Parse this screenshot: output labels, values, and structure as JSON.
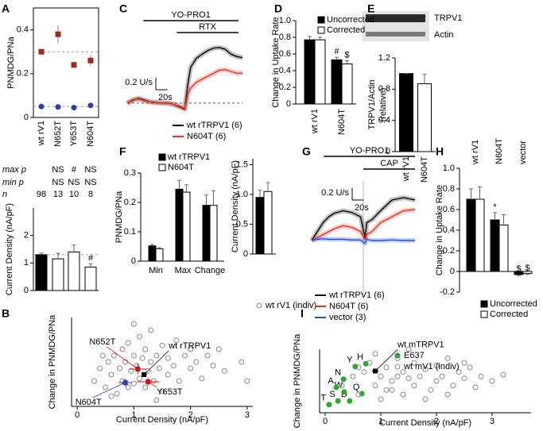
{
  "chart_data": [
    {
      "type": "dot",
      "panel": "A",
      "ylabel": "PNMDG/PNa",
      "categories": [
        "wt rV1",
        "N652T",
        "Y653T",
        "N604T"
      ],
      "ylim": [
        0,
        0.5
      ],
      "yticks": [
        0,
        0.2,
        0.4
      ],
      "series": [
        {
          "color": "#a0281e",
          "marker": "square",
          "values": [
            0.3,
            0.38,
            0.24,
            0.26
          ],
          "errors": [
            0.01,
            0.04,
            0.015,
            0.025
          ]
        },
        {
          "color": "#2d3bb0",
          "marker": "circle",
          "values": [
            0.05,
            0.048,
            0.045,
            0.055
          ],
          "errors": [
            0.003,
            0.005,
            0.005,
            0.006
          ]
        }
      ]
    },
    {
      "type": "table",
      "rows": [
        {
          "label": "max p",
          "color": "#d01010",
          "cells": [
            null,
            "NS",
            "#",
            "NS"
          ]
        },
        {
          "label": "min p",
          "color": "#2d3bb0",
          "cells": [
            null,
            "NS",
            "NS",
            "NS"
          ]
        },
        {
          "label": "n",
          "color": "#000000",
          "cells": [
            98,
            13,
            10,
            8
          ]
        }
      ]
    },
    {
      "type": "bar",
      "ylabel": "Current Density (nA/pF)",
      "ylim": [
        0,
        3
      ],
      "yticks": [
        0,
        1,
        2
      ],
      "values": [
        1.3,
        1.15,
        1.4,
        0.85
      ],
      "errors": [
        0.06,
        0.2,
        0.25,
        0.12
      ],
      "colors": [
        "#000000",
        "#ffffff",
        "#ffffff",
        "#ffffff"
      ],
      "annotations": [
        null,
        null,
        null,
        "#"
      ]
    },
    {
      "type": "scatter",
      "panel": "B",
      "xlabel": "Current Density (nA/pF)",
      "ylabel": "Change in PNMDG/PNa",
      "xlim": [
        -0.1,
        3.1
      ],
      "ylim": [
        -0.1,
        0.6
      ],
      "xticks": [
        0,
        1,
        2,
        3
      ],
      "series": [
        {
          "name": "wt rV1 (indiv)",
          "color": "#888888",
          "marker": "open",
          "x": [
            0.3,
            0.4,
            0.5,
            0.55,
            0.6,
            0.65,
            0.7,
            0.75,
            0.8,
            0.8,
            0.85,
            0.9,
            0.9,
            0.95,
            1.0,
            1.0,
            1.05,
            1.1,
            1.1,
            1.15,
            1.2,
            1.2,
            1.25,
            1.3,
            1.3,
            1.35,
            1.4,
            1.45,
            1.5,
            1.5,
            1.6,
            1.6,
            1.7,
            1.75,
            1.8,
            1.9,
            2.0,
            2.0,
            2.1,
            2.2,
            2.3,
            2.4,
            2.5,
            2.6,
            2.9,
            3.0,
            0.45,
            0.6,
            1.0,
            1.4
          ],
          "values": [
            0.1,
            0.2,
            0.05,
            0.25,
            0.15,
            0.3,
            0.0,
            0.2,
            0.35,
            0.1,
            0.25,
            0.05,
            0.4,
            0.18,
            0.3,
            0.08,
            0.22,
            0.45,
            0.12,
            0.28,
            0.05,
            0.35,
            0.18,
            0.25,
            0.5,
            0.1,
            0.3,
            0.2,
            0.38,
            0.02,
            0.15,
            0.28,
            0.22,
            0.42,
            0.1,
            0.3,
            0.2,
            0.35,
            0.25,
            0.12,
            0.3,
            0.22,
            0.35,
            0.18,
            0.25,
            0.1,
            0.3,
            -0.02,
            0.55,
            -0.05
          ]
        }
      ],
      "means": [
        {
          "label": "wt rTRPV1",
          "color": "#000000",
          "x": 1.18,
          "y": 0.15,
          "xerr": 0.05,
          "yerr": 0.015
        },
        {
          "label": "N652T",
          "color": "#d01010",
          "x": 1.07,
          "y": 0.194,
          "xerr": 0.15,
          "yerr": 0.04
        },
        {
          "label": "Y653T",
          "color": "#d01010",
          "x": 1.25,
          "y": 0.094,
          "xerr": 0.2,
          "yerr": 0.03
        },
        {
          "label": "N604T",
          "color": "#2d3bb0",
          "x": 0.85,
          "y": 0.0875,
          "xerr": 0.12,
          "yerr": 0.03
        }
      ]
    },
    {
      "type": "line",
      "panel": "C",
      "xlim": [
        0,
        200
      ],
      "ylim": [
        -0.2,
        1.3
      ],
      "x": [
        0,
        10,
        20,
        30,
        40,
        50,
        60,
        70,
        80,
        90,
        95,
        100,
        105,
        110,
        120,
        130,
        140,
        150,
        160,
        170,
        180,
        190,
        200
      ],
      "series": [
        {
          "name": "wt rTRPV1 (6)",
          "color": "#000000",
          "values": [
            0,
            0.05,
            0.08,
            0.05,
            0.02,
            0.01,
            0,
            0,
            -0.02,
            -0.06,
            -0.08,
            -0.1,
            0.3,
            0.6,
            0.75,
            0.82,
            0.88,
            0.92,
            0.93,
            0.9,
            0.82,
            0.78,
            0.76
          ]
        },
        {
          "name": "N604T (6)",
          "color": "#e8321e",
          "values": [
            0,
            0.06,
            0.07,
            0.04,
            0.02,
            0.01,
            0,
            0,
            -0.02,
            -0.05,
            -0.07,
            -0.09,
            0.15,
            0.25,
            0.35,
            0.4,
            0.45,
            0.5,
            0.55,
            0.56,
            0.53,
            0.5,
            0.5
          ]
        }
      ],
      "bars": [
        {
          "label": "YO-PRO1",
          "start": 28,
          "end": 193
        },
        {
          "label": "RTX",
          "start": 86,
          "end": 193
        }
      ],
      "scale_bar": {
        "y_label": "0.2 U/s",
        "y_value": 0.2,
        "x_label": "20s",
        "x_value": 20
      }
    },
    {
      "type": "bar",
      "panel": "D",
      "ylabel": "Change in Uptake Rate",
      "categories": [
        "wt rV1",
        "N604T"
      ],
      "ylim": [
        0,
        1
      ],
      "yticks": [
        0,
        0.2,
        0.4,
        0.6,
        0.8,
        {
          "value": 1,
          "label": "1.0"
        }
      ],
      "series": [
        {
          "name": "Uncorrected",
          "color": "#000000",
          "values": [
            0.77,
            0.53
          ],
          "errors": [
            0.04,
            0.03
          ],
          "annotations": [
            null,
            "#"
          ]
        },
        {
          "name": "Corrected",
          "color": "#ffffff",
          "values": [
            0.77,
            0.48
          ],
          "errors": [
            0.03,
            0.04
          ],
          "annotations": [
            null,
            "$"
          ]
        }
      ]
    },
    {
      "type": "bar",
      "panel": "E",
      "ylabel": [
        "TRPV1/Actin",
        "(relative)"
      ],
      "categories": [
        "wt rV1",
        "N604T"
      ],
      "ylim": [
        0,
        1.2
      ],
      "yticks": [
        0,
        0.4,
        0.8,
        1.2
      ],
      "values": [
        1.0,
        0.87
      ],
      "errors": [
        0,
        0.12
      ],
      "colors": [
        "#000000",
        "#ffffff"
      ],
      "blot_labels": [
        "TRPV1",
        "Actin"
      ]
    },
    {
      "type": "bar",
      "panel": "F",
      "ylabel": "PNMDG/PNa",
      "categories": [
        "Min",
        "Max",
        "Change"
      ],
      "ylim": [
        0,
        0.3
      ],
      "yticks": [
        0,
        0.1,
        0.2,
        0.3
      ],
      "series": [
        {
          "name": "wt rTRPV1",
          "color": "#000000",
          "values": [
            0.052,
            0.245,
            0.19
          ],
          "errors": [
            0.005,
            0.03,
            0.035
          ]
        },
        {
          "name": "N604T",
          "color": "#ffffff",
          "values": [
            0.042,
            0.235,
            0.19
          ],
          "errors": [
            0.004,
            0.025,
            0.05
          ]
        }
      ]
    },
    {
      "type": "bar",
      "ylabel": "Current Density (nA/pF)",
      "ylim": [
        0,
        1.6
      ],
      "yticks": [
        0,
        0.5,
        {
          "value": 1,
          "label": "1.0"
        },
        1.5
      ],
      "values": [
        0.95,
        1.05
      ],
      "errors": [
        0.12,
        0.15
      ],
      "colors": [
        "#000000",
        "#ffffff"
      ]
    },
    {
      "type": "line",
      "panel": "G",
      "xlim": [
        0,
        180
      ],
      "ylim": [
        -0.2,
        1.0
      ],
      "x": [
        0,
        10,
        20,
        30,
        40,
        55,
        70,
        85,
        93,
        96,
        105,
        120,
        140,
        160,
        180
      ],
      "series": [
        {
          "name": "wt rTRPV1 (6)",
          "color": "#000000",
          "values": [
            0,
            0.15,
            0.3,
            0.4,
            0.46,
            0.5,
            0.47,
            0.4,
            0.05,
            0.3,
            0.35,
            0.5,
            0.68,
            0.72,
            0.68
          ]
        },
        {
          "name": "N604T (6)",
          "color": "#e8321e",
          "values": [
            0,
            0.05,
            0.1,
            0.15,
            0.2,
            0.25,
            0.22,
            0.15,
            0.02,
            0.1,
            0.15,
            0.3,
            0.4,
            0.5,
            0.52
          ]
        },
        {
          "name": "vector (3)",
          "color": "#2050d8",
          "values": [
            0,
            0.02,
            0.03,
            0.02,
            0.02,
            0.02,
            0.01,
            0.01,
            -0.05,
            0.02,
            0,
            0,
            0.01,
            0,
            0
          ]
        }
      ],
      "bars": [
        {
          "label": "YO-PRO1",
          "start": 21,
          "end": 180
        },
        {
          "label": "CAP",
          "start": 90,
          "end": 180
        }
      ],
      "scale_bar": {
        "y_label": "0.2 U/s",
        "y_value": 0.2,
        "x_label": "20s",
        "x_value": 20
      }
    },
    {
      "type": "bar",
      "panel": "H",
      "ylabel": "Change in Uptake Rate",
      "categories": [
        "wt rV1",
        "N604T",
        "vector"
      ],
      "ylim": [
        -0.2,
        1
      ],
      "yticks": [
        -0.2,
        0,
        0.2,
        0.4,
        0.6,
        0.8,
        {
          "value": 1,
          "label": "1.0"
        }
      ],
      "series": [
        {
          "name": "Uncorrected",
          "color": "#000000",
          "values": [
            0.7,
            0.5,
            -0.03
          ],
          "errors": [
            0.1,
            0.07,
            0.01
          ],
          "annotations": [
            null,
            "*",
            "$"
          ]
        },
        {
          "name": "Corrected",
          "color": "#ffffff",
          "values": [
            0.7,
            0.45,
            -0.02
          ],
          "errors": [
            0.12,
            0.1,
            0.01
          ],
          "annotations": [
            null,
            null,
            "$"
          ]
        }
      ]
    },
    {
      "type": "scatter",
      "panel": "I",
      "xlabel": "Current Density (nA/pF)",
      "ylabel": "Change in PNMDG/PNa",
      "xlim": [
        -0.1,
        3.7
      ],
      "ylim": [
        -0.1,
        0.6
      ],
      "xticks": [
        0,
        1,
        2,
        3
      ],
      "series": [
        {
          "name": "E637",
          "color": "#2aa82a",
          "marker": "filled",
          "x": [
            0.07,
            0.23,
            0.44,
            0.34,
            0.2,
            0.33,
            0.54,
            0.73,
            0.66
          ],
          "values": [
            -0.01,
            0.03,
            0.03,
            0.13,
            0.18,
            0.27,
            0.41,
            0.44,
            0.11
          ],
          "labels": [
            "T",
            "S",
            "D",
            "W",
            "A",
            "N",
            "Y",
            "H",
            "Q"
          ]
        },
        {
          "name": "wt mV1 (indiv)",
          "color": "#888888",
          "marker": "open",
          "x": [
            0.3,
            0.5,
            0.6,
            0.7,
            0.8,
            0.9,
            1.0,
            1.0,
            1.1,
            1.2,
            1.2,
            1.3,
            1.4,
            1.4,
            1.5,
            1.6,
            1.6,
            1.7,
            1.8,
            1.9,
            2.0,
            2.0,
            2.1,
            2.2,
            2.3,
            2.4,
            2.5,
            2.6,
            2.7,
            2.8,
            3.0,
            3.2,
            0.9,
            1.5,
            2.2,
            1.1,
            1.8,
            2.5,
            0.6,
            1.3
          ],
          "values": [
            0.2,
            0.3,
            0.1,
            0.35,
            0.45,
            0.2,
            0.3,
            0.05,
            0.4,
            0.25,
            0.15,
            0.5,
            0.35,
            0.1,
            0.28,
            0.45,
            0.2,
            0.3,
            0.38,
            0.15,
            0.42,
            0.25,
            0.3,
            0.5,
            0.2,
            0.35,
            0.28,
            0.4,
            0.18,
            0.3,
            0.25,
            0.32,
            0.55,
            0.6,
            0.1,
            0.15,
            0.05,
            0.45,
            0.4,
            0.3
          ]
        }
      ],
      "means": [
        {
          "label": "wt mTRPV1",
          "color": "#000000",
          "x": 0.9,
          "y": 0.36,
          "xerr": 0.06,
          "yerr": 0.02
        }
      ]
    }
  ]
}
